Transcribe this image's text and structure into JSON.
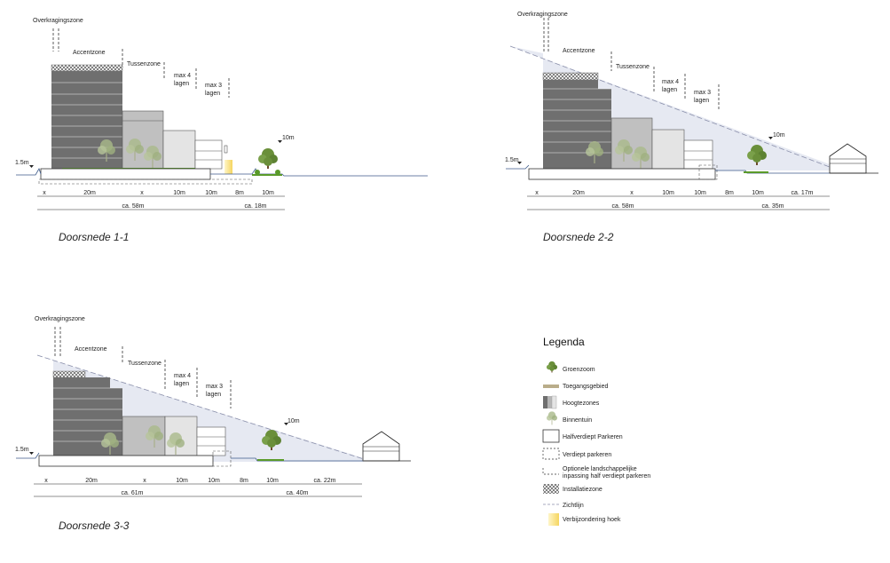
{
  "sections": [
    {
      "caption": "Doorsnede 1-1",
      "labels": {
        "overkraging": "Overkragingszone",
        "accent": "Accentzone",
        "tussen": "Tussenzone",
        "max4a": "max 4",
        "max4b": "lagen",
        "max3a": "max 3",
        "max3b": "lagen",
        "level": "1.5m",
        "tree": "10m"
      },
      "dims_top": [
        "x",
        "20m",
        "x",
        "10m",
        "10m",
        "8m",
        "10m"
      ],
      "dims_bottom": [
        "ca. 58m",
        "ca. 18m"
      ]
    },
    {
      "caption": "Doorsnede 2-2",
      "labels": {
        "overkraging": "Overkragingszone",
        "accent": "Accentzone",
        "tussen": "Tussenzone",
        "max4a": "max 4",
        "max4b": "lagen",
        "max3a": "max 3",
        "max3b": "lagen",
        "level": "1.5m",
        "tree": "10m"
      },
      "dims_top": [
        "x",
        "20m",
        "x",
        "10m",
        "10m",
        "8m",
        "10m",
        "ca. 17m"
      ],
      "dims_bottom": [
        "ca. 58m",
        "ca. 35m"
      ]
    },
    {
      "caption": "Doorsnede 3-3",
      "labels": {
        "overkraging": "Overkragingszone",
        "accent": "Accentzone",
        "tussen": "Tussenzone",
        "max4a": "max 4",
        "max4b": "lagen",
        "max3a": "max 3",
        "max3b": "lagen",
        "level": "1.5m",
        "tree": "10m"
      },
      "dims_top": [
        "x",
        "20m",
        "x",
        "10m",
        "10m",
        "8m",
        "10m",
        "ca. 22m"
      ],
      "dims_bottom": [
        "ca. 61m",
        "ca. 40m"
      ]
    }
  ],
  "legend": {
    "title": "Legenda",
    "items": [
      {
        "label": "Groenzoom"
      },
      {
        "label": "Toegangsgebied"
      },
      {
        "label": "Hoogtezones"
      },
      {
        "label": "Binnentuin"
      },
      {
        "label": "Halfverdiept Parkeren"
      },
      {
        "label": "Verdiept parkeren"
      },
      {
        "label": "Optionele landschappelijke",
        "label2": "inpassing half verdiept parkeren"
      },
      {
        "label": "Installatiezone"
      },
      {
        "label": "Zichtlijn"
      },
      {
        "label": "Verbijzondering hoek"
      }
    ]
  },
  "colors": {
    "dark": "#6f6f6f",
    "mid": "#b5b5b5",
    "light": "#e4e4e4",
    "sky": "#e6e9f2",
    "tree": "#6a8f3a",
    "ground": "#3d5a8a",
    "grass": "#5a9a2a",
    "yellow": "#f7e27a"
  }
}
